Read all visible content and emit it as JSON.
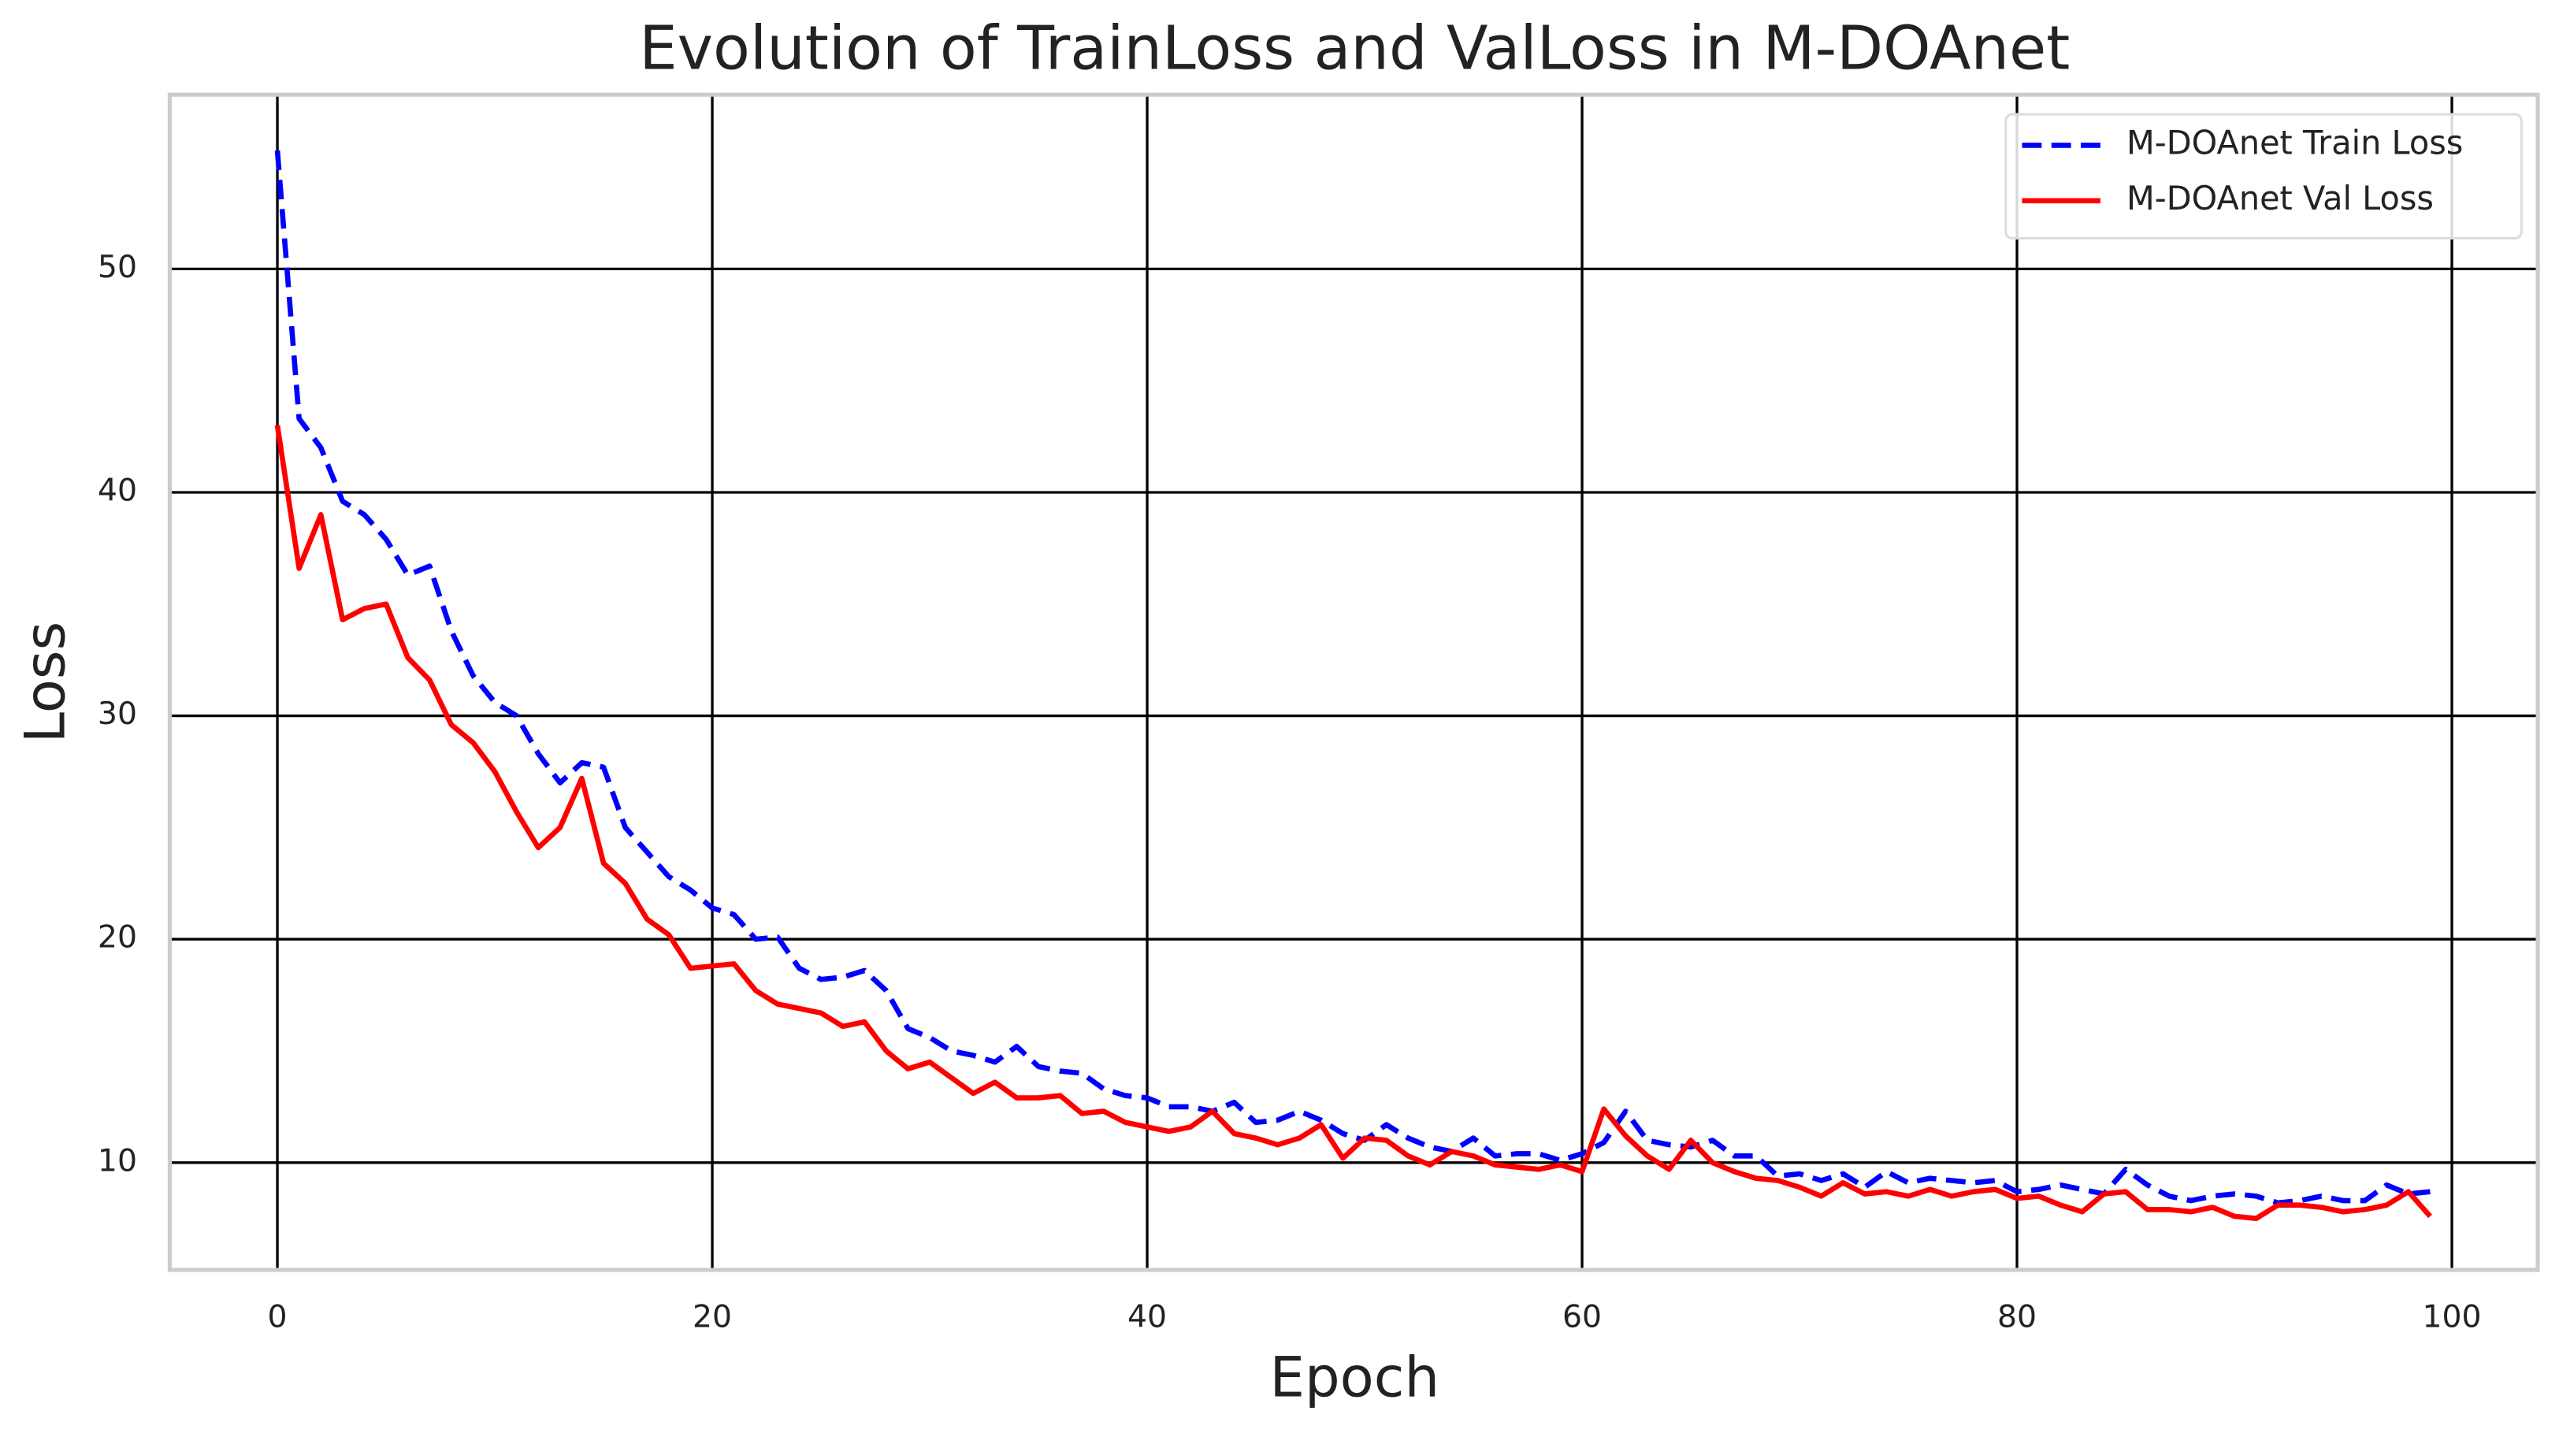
{
  "chart_data": {
    "type": "line",
    "title": "Evolution of TrainLoss and ValLoss in M-DOAnet",
    "xlabel": "Epoch",
    "ylabel": "Loss",
    "x": [
      0,
      1,
      2,
      3,
      4,
      5,
      6,
      7,
      8,
      9,
      10,
      11,
      12,
      13,
      14,
      15,
      16,
      17,
      18,
      19,
      20,
      21,
      22,
      23,
      24,
      25,
      26,
      27,
      28,
      29,
      30,
      31,
      32,
      33,
      34,
      35,
      36,
      37,
      38,
      39,
      40,
      41,
      42,
      43,
      44,
      45,
      46,
      47,
      48,
      49,
      50,
      51,
      52,
      53,
      54,
      55,
      56,
      57,
      58,
      59,
      60,
      61,
      62,
      63,
      64,
      65,
      66,
      67,
      68,
      69,
      70,
      71,
      72,
      73,
      74,
      75,
      76,
      77,
      78,
      79,
      80,
      81,
      82,
      83,
      84,
      85,
      86,
      87,
      88,
      89,
      90,
      91,
      92,
      93,
      94,
      95,
      96,
      97,
      98,
      99
    ],
    "series": [
      {
        "name": "M-DOAnet Train Loss",
        "color": "#0000ff",
        "dash": true,
        "values": [
          55.3,
          43.3,
          42,
          39.6,
          39,
          37.9,
          36.3,
          36.7,
          33.8,
          31.8,
          30.6,
          30,
          28.3,
          27,
          27.9,
          27.7,
          25,
          23.9,
          22.8,
          22.2,
          21.4,
          21.1,
          20,
          20.1,
          18.7,
          18.2,
          18.3,
          18.6,
          17.7,
          16,
          15.6,
          15,
          14.8,
          14.5,
          15.2,
          14.3,
          14.1,
          14,
          13.3,
          13,
          12.9,
          12.5,
          12.5,
          12.3,
          12.7,
          11.8,
          11.9,
          12.3,
          11.9,
          11.3,
          11,
          11.7,
          11.1,
          10.7,
          10.5,
          11.1,
          10.3,
          10.4,
          10.4,
          10.1,
          10.4,
          10.9,
          12.3,
          11,
          10.8,
          10.7,
          11,
          10.3,
          10.3,
          9.4,
          9.5,
          9.2,
          9.5,
          8.9,
          9.6,
          9.1,
          9.3,
          9.2,
          9.1,
          9.2,
          8.7,
          8.8,
          9,
          8.8,
          8.6,
          9.7,
          9,
          8.5,
          8.3,
          8.5,
          8.6,
          8.5,
          8.2,
          8.3,
          8.5,
          8.3,
          8.3,
          9,
          8.6,
          8.7
        ]
      },
      {
        "name": "M-DOAnet Val Loss",
        "color": "#ff0000",
        "dash": false,
        "values": [
          43,
          36.6,
          39,
          34.3,
          34.8,
          35,
          32.6,
          31.6,
          29.6,
          28.8,
          27.5,
          25.7,
          24.1,
          25,
          27.2,
          23.4,
          22.5,
          20.9,
          20.2,
          18.7,
          18.8,
          18.9,
          17.7,
          17.1,
          16.9,
          16.7,
          16.1,
          16.3,
          15,
          14.2,
          14.5,
          13.8,
          13.1,
          13.6,
          12.9,
          12.9,
          13,
          12.2,
          12.3,
          11.8,
          11.6,
          11.4,
          11.6,
          12.3,
          11.3,
          11.1,
          10.8,
          11.1,
          11.7,
          10.2,
          11.1,
          11,
          10.3,
          9.9,
          10.5,
          10.3,
          9.9,
          9.8,
          9.7,
          9.9,
          9.6,
          12.4,
          11.2,
          10.3,
          9.7,
          11,
          10,
          9.6,
          9.3,
          9.2,
          8.9,
          8.5,
          9.1,
          8.6,
          8.7,
          8.5,
          8.8,
          8.5,
          8.7,
          8.8,
          8.4,
          8.5,
          8.1,
          7.8,
          8.6,
          8.7,
          7.9,
          7.9,
          7.8,
          8,
          7.6,
          7.5,
          8.1,
          8.1,
          8,
          7.8,
          7.9,
          8.1,
          8.7,
          7.6
        ]
      }
    ],
    "xlim": [
      -4.95,
      103.95
    ],
    "ylim": [
      5.2,
      57.8
    ],
    "xticks": [
      0,
      20,
      40,
      60,
      80,
      100
    ],
    "yticks": [
      10,
      20,
      30,
      40,
      50
    ],
    "grid": true,
    "legend": "upper right"
  }
}
